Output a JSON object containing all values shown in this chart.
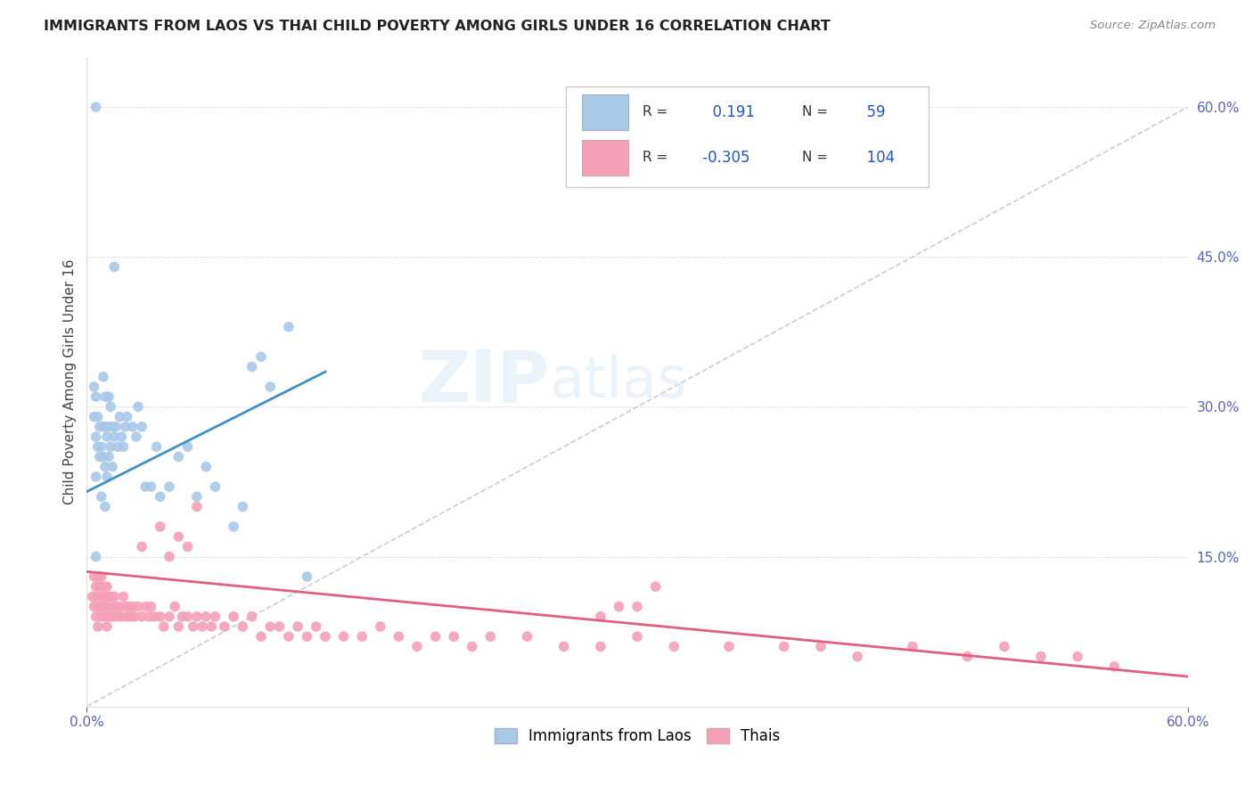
{
  "title": "IMMIGRANTS FROM LAOS VS THAI CHILD POVERTY AMONG GIRLS UNDER 16 CORRELATION CHART",
  "source": "Source: ZipAtlas.com",
  "ylabel": "Child Poverty Among Girls Under 16",
  "xlim": [
    0.0,
    0.6
  ],
  "ylim": [
    0.0,
    0.65
  ],
  "y_ticks_right": [
    0.15,
    0.3,
    0.45,
    0.6
  ],
  "y_tick_labels_right": [
    "15.0%",
    "30.0%",
    "45.0%",
    "60.0%"
  ],
  "legend_r_blue": "0.191",
  "legend_n_blue": "59",
  "legend_r_pink": "-0.305",
  "legend_n_pink": "104",
  "blue_color": "#a8c8e8",
  "pink_color": "#f4a0b8",
  "blue_line_color": "#4090c8",
  "pink_line_color": "#e06080",
  "ref_line_color": "#c0c0c0",
  "blue_line_x0": 0.0,
  "blue_line_y0": 0.215,
  "blue_line_x1": 0.13,
  "blue_line_y1": 0.335,
  "pink_line_x0": 0.0,
  "pink_line_y0": 0.135,
  "pink_line_x1": 0.6,
  "pink_line_y1": 0.03,
  "blue_points_x": [
    0.004,
    0.004,
    0.005,
    0.005,
    0.005,
    0.006,
    0.006,
    0.007,
    0.007,
    0.008,
    0.008,
    0.009,
    0.009,
    0.009,
    0.01,
    0.01,
    0.01,
    0.011,
    0.011,
    0.012,
    0.012,
    0.012,
    0.013,
    0.013,
    0.014,
    0.014,
    0.015,
    0.016,
    0.017,
    0.018,
    0.019,
    0.02,
    0.021,
    0.022,
    0.025,
    0.027,
    0.028,
    0.03,
    0.032,
    0.035,
    0.038,
    0.04,
    0.045,
    0.05,
    0.055,
    0.06,
    0.065,
    0.07,
    0.08,
    0.085,
    0.09,
    0.095,
    0.1,
    0.11,
    0.12,
    0.005,
    0.01,
    0.015,
    0.005
  ],
  "blue_points_y": [
    0.29,
    0.32,
    0.23,
    0.27,
    0.31,
    0.26,
    0.29,
    0.25,
    0.28,
    0.21,
    0.26,
    0.25,
    0.28,
    0.33,
    0.24,
    0.28,
    0.31,
    0.23,
    0.27,
    0.25,
    0.28,
    0.31,
    0.26,
    0.3,
    0.24,
    0.28,
    0.27,
    0.28,
    0.26,
    0.29,
    0.27,
    0.26,
    0.28,
    0.29,
    0.28,
    0.27,
    0.3,
    0.28,
    0.22,
    0.22,
    0.26,
    0.21,
    0.22,
    0.25,
    0.26,
    0.21,
    0.24,
    0.22,
    0.18,
    0.2,
    0.34,
    0.35,
    0.32,
    0.38,
    0.13,
    0.15,
    0.2,
    0.44,
    0.6
  ],
  "pink_points_x": [
    0.003,
    0.004,
    0.004,
    0.005,
    0.005,
    0.005,
    0.006,
    0.006,
    0.006,
    0.007,
    0.007,
    0.008,
    0.008,
    0.008,
    0.009,
    0.009,
    0.01,
    0.01,
    0.011,
    0.011,
    0.011,
    0.012,
    0.012,
    0.013,
    0.013,
    0.014,
    0.015,
    0.015,
    0.016,
    0.017,
    0.018,
    0.019,
    0.02,
    0.021,
    0.022,
    0.023,
    0.024,
    0.025,
    0.026,
    0.028,
    0.03,
    0.032,
    0.034,
    0.035,
    0.037,
    0.04,
    0.042,
    0.045,
    0.048,
    0.05,
    0.052,
    0.055,
    0.058,
    0.06,
    0.063,
    0.065,
    0.068,
    0.07,
    0.075,
    0.08,
    0.085,
    0.09,
    0.095,
    0.1,
    0.105,
    0.11,
    0.115,
    0.12,
    0.125,
    0.13,
    0.14,
    0.15,
    0.16,
    0.17,
    0.18,
    0.19,
    0.2,
    0.21,
    0.22,
    0.24,
    0.26,
    0.28,
    0.3,
    0.32,
    0.35,
    0.38,
    0.4,
    0.42,
    0.45,
    0.48,
    0.5,
    0.52,
    0.54,
    0.56,
    0.03,
    0.04,
    0.05,
    0.06,
    0.3,
    0.31,
    0.045,
    0.055,
    0.28,
    0.29
  ],
  "pink_points_y": [
    0.11,
    0.13,
    0.1,
    0.12,
    0.09,
    0.11,
    0.13,
    0.1,
    0.08,
    0.12,
    0.1,
    0.11,
    0.13,
    0.09,
    0.12,
    0.1,
    0.11,
    0.09,
    0.12,
    0.1,
    0.08,
    0.11,
    0.09,
    0.11,
    0.09,
    0.1,
    0.11,
    0.09,
    0.1,
    0.09,
    0.1,
    0.09,
    0.11,
    0.1,
    0.09,
    0.1,
    0.09,
    0.1,
    0.09,
    0.1,
    0.09,
    0.1,
    0.09,
    0.1,
    0.09,
    0.09,
    0.08,
    0.09,
    0.1,
    0.08,
    0.09,
    0.09,
    0.08,
    0.09,
    0.08,
    0.09,
    0.08,
    0.09,
    0.08,
    0.09,
    0.08,
    0.09,
    0.07,
    0.08,
    0.08,
    0.07,
    0.08,
    0.07,
    0.08,
    0.07,
    0.07,
    0.07,
    0.08,
    0.07,
    0.06,
    0.07,
    0.07,
    0.06,
    0.07,
    0.07,
    0.06,
    0.06,
    0.07,
    0.06,
    0.06,
    0.06,
    0.06,
    0.05,
    0.06,
    0.05,
    0.06,
    0.05,
    0.05,
    0.04,
    0.16,
    0.18,
    0.17,
    0.2,
    0.1,
    0.12,
    0.15,
    0.16,
    0.09,
    0.1
  ]
}
